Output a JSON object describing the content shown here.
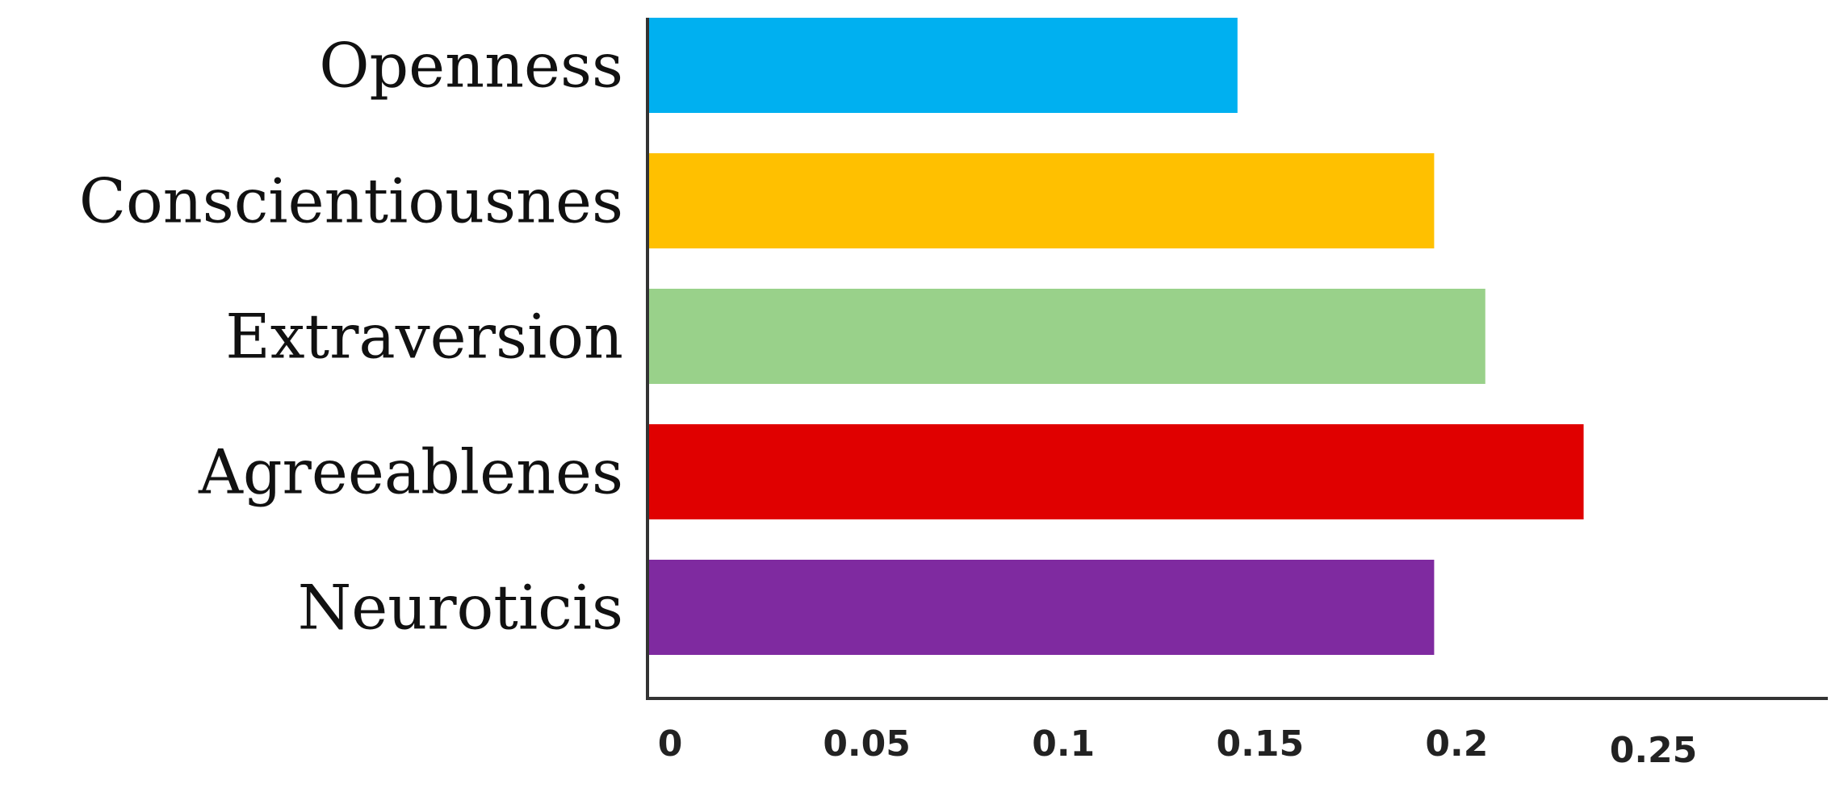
{
  "chart_data": {
    "type": "bar",
    "orientation": "horizontal",
    "title": "",
    "xlabel": "",
    "ylabel": "",
    "categories": [
      "Openness",
      "Conscientiousnes",
      "Extraversion",
      "Agreeablenes",
      "Neuroticis"
    ],
    "values": [
      0.15,
      0.2,
      0.213,
      0.238,
      0.2
    ],
    "colors": [
      "#00b0f0",
      "#ffc000",
      "#99d18a",
      "#e00000",
      "#7f2aa0"
    ],
    "xlim": [
      0,
      0.29
    ],
    "ticks": [
      0,
      0.05,
      0.1,
      0.15,
      0.2,
      0.25
    ],
    "tick_labels": [
      "0",
      "0.05",
      "0.1",
      "0.15",
      "0.2",
      "0.25"
    ],
    "grid": false,
    "legend": "none"
  }
}
